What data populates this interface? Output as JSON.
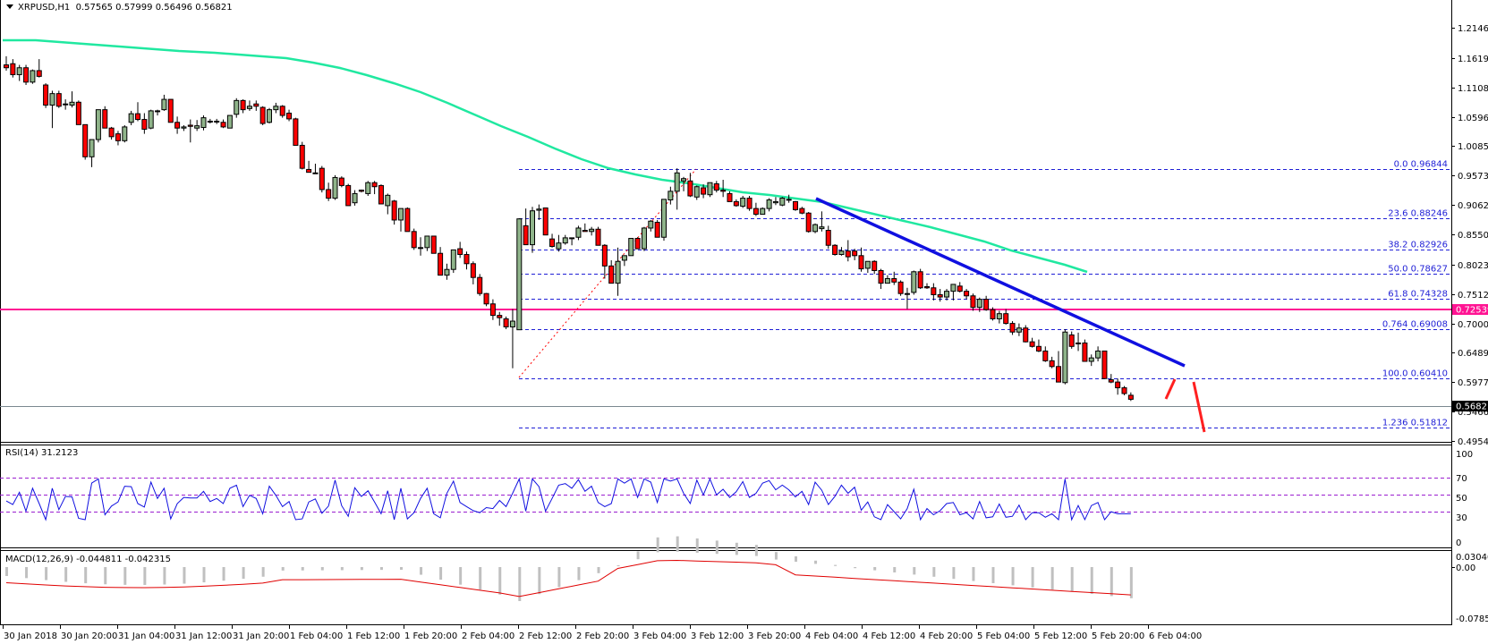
{
  "header": {
    "symbol": "XRPUSD,H1",
    "ohlc": "0.57565 0.57999 0.56496 0.56821"
  },
  "indicators": {
    "rsi_label": "RSI(14) 31.2123",
    "macd_label": "MACD(12,26,9) -0.044811 -0.042315"
  },
  "colors": {
    "bull": "#8fb48a",
    "bear": "#ff0000",
    "ma": "#20e8a0",
    "trend": "#1010e0",
    "support": "#ff1493",
    "fib": "#1f1fd6",
    "rsi": "#1010e0",
    "level": "#9b1fd0",
    "macd_hist": "#c0c0c0",
    "macd_signal": "#e00000"
  },
  "chart_data": {
    "type": "candlestick",
    "title": "XRPUSD,H1",
    "price_axis": {
      "ticks": [
        "1.21465",
        "1.16195",
        "1.11080",
        "1.05965",
        "1.00850",
        "0.95735",
        "0.90620",
        "0.85505",
        "0.80235",
        "0.75120",
        "0.70005",
        "0.64890",
        "0.59775",
        "0.54660",
        "0.49545"
      ],
      "range": [
        0.49545,
        1.21465
      ]
    },
    "current_price": "0.56821",
    "support_level": "0.72539",
    "time_axis": [
      "30 Jan 2018",
      "30 Jan 20:00",
      "31 Jan 04:00",
      "31 Jan 12:00",
      "31 Jan 20:00",
      "1 Feb 04:00",
      "1 Feb 12:00",
      "1 Feb 20:00",
      "2 Feb 04:00",
      "2 Feb 12:00",
      "2 Feb 20:00",
      "3 Feb 04:00",
      "3 Feb 12:00",
      "3 Feb 20:00",
      "4 Feb 04:00",
      "4 Feb 12:00",
      "4 Feb 20:00",
      "5 Feb 04:00",
      "5 Feb 12:00",
      "5 Feb 20:00",
      "6 Feb 04:00"
    ],
    "fibonacci": [
      {
        "label": "0.0  0.96844",
        "price": 0.96844
      },
      {
        "label": "23.6  0.88246",
        "price": 0.88246
      },
      {
        "label": "38.2  0.82926",
        "price": 0.82926
      },
      {
        "label": "50.0  0.78627",
        "price": 0.78627
      },
      {
        "label": "61.8  0.74328",
        "price": 0.74328
      },
      {
        "label": "0.764  0.69008",
        "price": 0.69008
      },
      {
        "label": "100.0  0.60410",
        "price": 0.6041
      },
      {
        "label": "1.236  0.51812",
        "price": 0.51812
      }
    ],
    "rsi": {
      "label": "RSI(14)",
      "value": 31.2123,
      "levels": [
        70,
        50,
        30
      ],
      "axis": [
        "100",
        "70",
        "50",
        "30",
        "0"
      ]
    },
    "macd": {
      "label": "MACD(12,26,9)",
      "main": -0.044811,
      "signal": -0.042315,
      "axis": [
        "0.030406",
        "0.00",
        "-0.078542"
      ]
    },
    "candles": [
      [
        1.15,
        1.165,
        1.14,
        1.145
      ],
      [
        1.152,
        1.16,
        1.128,
        1.133
      ],
      [
        1.133,
        1.15,
        1.122,
        1.145
      ],
      [
        1.145,
        1.15,
        1.115,
        1.12
      ],
      [
        1.12,
        1.142,
        1.117,
        1.14
      ],
      [
        1.14,
        1.16,
        1.128,
        1.13
      ],
      [
        1.115,
        1.118,
        1.075,
        1.08
      ],
      [
        1.08,
        1.105,
        1.04,
        1.1
      ],
      [
        1.1,
        1.105,
        1.075,
        1.078
      ],
      [
        1.082,
        1.09,
        1.072,
        1.082
      ],
      [
        1.08,
        1.104,
        1.076,
        1.085
      ],
      [
        1.085,
        1.088,
        1.046,
        1.046
      ],
      [
        1.046,
        1.046,
        0.985,
        0.99
      ],
      [
        0.99,
        1.02,
        0.972,
        1.02
      ],
      [
        1.02,
        1.072,
        1.015,
        1.072
      ],
      [
        1.072,
        1.078,
        1.04,
        1.04
      ],
      [
        1.04,
        1.042,
        1.02,
        1.025
      ],
      [
        1.03,
        1.035,
        1.01,
        1.018
      ],
      [
        1.018,
        1.045,
        1.015,
        1.042
      ],
      [
        1.05,
        1.07,
        1.045,
        1.065
      ],
      [
        1.065,
        1.085,
        1.052,
        1.055
      ],
      [
        1.055,
        1.066,
        1.03,
        1.038
      ],
      [
        1.04,
        1.072,
        1.038,
        1.07
      ],
      [
        1.07,
        1.072,
        1.062,
        1.07
      ],
      [
        1.072,
        1.098,
        1.07,
        1.09
      ],
      [
        1.09,
        1.09,
        1.05,
        1.05
      ],
      [
        1.05,
        1.06,
        1.03,
        1.04
      ],
      [
        1.04,
        1.045,
        1.035,
        1.042
      ],
      [
        1.045,
        1.055,
        1.015,
        1.043
      ],
      [
        1.04,
        1.054,
        1.035,
        1.044
      ],
      [
        1.041,
        1.062,
        1.036,
        1.058
      ],
      [
        1.052,
        1.056,
        1.048,
        1.052
      ],
      [
        1.052,
        1.056,
        1.047,
        1.052
      ],
      [
        1.05,
        1.055,
        1.04,
        1.042
      ],
      [
        1.04,
        1.062,
        1.04,
        1.062
      ],
      [
        1.064,
        1.092,
        1.058,
        1.088
      ],
      [
        1.088,
        1.09,
        1.066,
        1.072
      ],
      [
        1.074,
        1.088,
        1.07,
        1.078
      ],
      [
        1.082,
        1.088,
        1.07,
        1.078
      ],
      [
        1.076,
        1.078,
        1.045,
        1.048
      ],
      [
        1.05,
        1.075,
        1.048,
        1.072
      ],
      [
        1.072,
        1.084,
        1.066,
        1.078
      ],
      [
        1.078,
        1.08,
        1.058,
        1.062
      ],
      [
        1.066,
        1.072,
        1.052,
        1.056
      ],
      [
        1.056,
        1.058,
        1.01,
        1.01
      ],
      [
        1.01,
        1.016,
        0.968,
        0.97
      ],
      [
        0.968,
        0.983,
        0.963,
        0.963
      ],
      [
        0.962,
        0.978,
        0.961,
        0.962
      ],
      [
        0.97,
        0.974,
        0.928,
        0.933
      ],
      [
        0.933,
        0.945,
        0.913,
        0.918
      ],
      [
        0.918,
        0.958,
        0.915,
        0.954
      ],
      [
        0.953,
        0.956,
        0.937,
        0.94
      ],
      [
        0.94,
        0.943,
        0.905,
        0.905
      ],
      [
        0.91,
        0.932,
        0.905,
        0.926
      ],
      [
        0.932,
        0.933,
        0.928,
        0.93
      ],
      [
        0.926,
        0.948,
        0.922,
        0.945
      ],
      [
        0.945,
        0.948,
        0.925,
        0.938
      ],
      [
        0.94,
        0.942,
        0.908,
        0.908
      ],
      [
        0.905,
        0.926,
        0.89,
        0.923
      ],
      [
        0.913,
        0.915,
        0.872,
        0.88
      ],
      [
        0.88,
        0.9,
        0.86,
        0.9
      ],
      [
        0.9,
        0.902,
        0.86,
        0.86
      ],
      [
        0.86,
        0.865,
        0.828,
        0.832
      ],
      [
        0.832,
        0.85,
        0.818,
        0.832
      ],
      [
        0.832,
        0.852,
        0.826,
        0.852
      ],
      [
        0.852,
        0.852,
        0.822,
        0.822
      ],
      [
        0.822,
        0.833,
        0.784,
        0.784
      ],
      [
        0.784,
        0.804,
        0.776,
        0.794
      ],
      [
        0.794,
        0.828,
        0.788,
        0.828
      ],
      [
        0.83,
        0.842,
        0.814,
        0.82
      ],
      [
        0.82,
        0.825,
        0.794,
        0.804
      ],
      [
        0.804,
        0.808,
        0.768,
        0.78
      ],
      [
        0.78,
        0.786,
        0.748,
        0.752
      ],
      [
        0.752,
        0.753,
        0.73,
        0.734
      ],
      [
        0.734,
        0.742,
        0.706,
        0.714
      ],
      [
        0.714,
        0.72,
        0.696,
        0.71
      ],
      [
        0.708,
        0.712,
        0.69,
        0.694
      ],
      [
        0.694,
        0.725,
        0.622,
        0.704
      ],
      [
        0.689,
        0.883,
        0.689,
        0.882
      ],
      [
        0.87,
        0.9,
        0.84,
        0.837
      ],
      [
        0.837,
        0.903,
        0.823,
        0.896
      ],
      [
        0.897,
        0.907,
        0.88,
        0.899
      ],
      [
        0.901,
        0.901,
        0.856,
        0.854
      ],
      [
        0.847,
        0.856,
        0.832,
        0.834
      ],
      [
        0.83,
        0.854,
        0.825,
        0.84
      ],
      [
        0.84,
        0.854,
        0.837,
        0.849
      ],
      [
        0.849,
        0.849,
        0.836,
        0.849
      ],
      [
        0.85,
        0.87,
        0.845,
        0.866
      ],
      [
        0.862,
        0.874,
        0.86,
        0.86
      ],
      [
        0.86,
        0.868,
        0.853,
        0.864
      ],
      [
        0.864,
        0.868,
        0.836,
        0.836
      ],
      [
        0.836,
        0.838,
        0.778,
        0.8
      ],
      [
        0.8,
        0.81,
        0.77,
        0.77
      ],
      [
        0.77,
        0.832,
        0.748,
        0.808
      ],
      [
        0.81,
        0.818,
        0.8,
        0.818
      ],
      [
        0.818,
        0.84,
        0.82,
        0.848
      ],
      [
        0.848,
        0.85,
        0.83,
        0.83
      ],
      [
        0.83,
        0.868,
        0.826,
        0.866
      ],
      [
        0.866,
        0.88,
        0.86,
        0.878
      ],
      [
        0.876,
        0.88,
        0.85,
        0.85
      ],
      [
        0.85,
        0.9,
        0.844,
        0.916
      ],
      [
        0.915,
        0.938,
        0.907,
        0.93
      ],
      [
        0.93,
        0.97,
        0.898,
        0.962
      ],
      [
        0.948,
        0.955,
        0.93,
        0.952
      ],
      [
        0.948,
        0.962,
        0.92,
        0.922
      ],
      [
        0.92,
        0.94,
        0.915,
        0.938
      ],
      [
        0.936,
        0.942,
        0.918,
        0.925
      ],
      [
        0.924,
        0.945,
        0.92,
        0.945
      ],
      [
        0.943,
        0.948,
        0.928,
        0.932
      ],
      [
        0.932,
        0.95,
        0.92,
        0.93
      ],
      [
        0.926,
        0.93,
        0.912,
        0.912
      ],
      [
        0.912,
        0.916,
        0.903,
        0.905
      ],
      [
        0.904,
        0.922,
        0.901,
        0.918
      ],
      [
        0.918,
        0.922,
        0.896,
        0.9
      ],
      [
        0.9,
        0.91,
        0.887,
        0.89
      ],
      [
        0.89,
        0.902,
        0.89,
        0.9
      ],
      [
        0.9,
        0.918,
        0.895,
        0.915
      ],
      [
        0.91,
        0.92,
        0.906,
        0.912
      ],
      [
        0.906,
        0.92,
        0.904,
        0.918
      ],
      [
        0.916,
        0.924,
        0.91,
        0.915
      ],
      [
        0.912,
        0.913,
        0.896,
        0.898
      ],
      [
        0.9,
        0.903,
        0.89,
        0.892
      ],
      [
        0.892,
        0.894,
        0.858,
        0.86
      ],
      [
        0.86,
        0.874,
        0.857,
        0.872
      ],
      [
        0.865,
        0.895,
        0.86,
        0.868
      ],
      [
        0.862,
        0.87,
        0.83,
        0.836
      ],
      [
        0.836,
        0.838,
        0.818,
        0.82
      ],
      [
        0.82,
        0.833,
        0.818,
        0.826
      ],
      [
        0.826,
        0.845,
        0.808,
        0.816
      ],
      [
        0.826,
        0.83,
        0.81,
        0.818
      ],
      [
        0.818,
        0.832,
        0.79,
        0.795
      ],
      [
        0.796,
        0.808,
        0.788,
        0.808
      ],
      [
        0.808,
        0.81,
        0.786,
        0.792
      ],
      [
        0.792,
        0.795,
        0.76,
        0.77
      ],
      [
        0.77,
        0.784,
        0.772,
        0.778
      ],
      [
        0.778,
        0.79,
        0.767,
        0.772
      ],
      [
        0.772,
        0.775,
        0.748,
        0.752
      ],
      [
        0.752,
        0.762,
        0.725,
        0.752
      ],
      [
        0.754,
        0.792,
        0.75,
        0.79
      ],
      [
        0.79,
        0.795,
        0.76,
        0.762
      ],
      [
        0.764,
        0.77,
        0.76,
        0.762
      ],
      [
        0.762,
        0.77,
        0.74,
        0.75
      ],
      [
        0.75,
        0.76,
        0.738,
        0.746
      ],
      [
        0.746,
        0.76,
        0.74,
        0.756
      ],
      [
        0.756,
        0.768,
        0.74,
        0.768
      ],
      [
        0.765,
        0.772,
        0.754,
        0.756
      ],
      [
        0.756,
        0.76,
        0.742,
        0.748
      ],
      [
        0.748,
        0.752,
        0.722,
        0.728
      ],
      [
        0.728,
        0.745,
        0.72,
        0.742
      ],
      [
        0.742,
        0.748,
        0.722,
        0.724
      ],
      [
        0.724,
        0.728,
        0.705,
        0.708
      ],
      [
        0.708,
        0.722,
        0.7,
        0.717
      ],
      [
        0.717,
        0.725,
        0.698,
        0.7
      ],
      [
        0.7,
        0.704,
        0.68,
        0.685
      ],
      [
        0.685,
        0.7,
        0.678,
        0.692
      ],
      [
        0.692,
        0.697,
        0.667,
        0.668
      ],
      [
        0.668,
        0.675,
        0.658,
        0.66
      ],
      [
        0.66,
        0.672,
        0.65,
        0.652
      ],
      [
        0.652,
        0.66,
        0.633,
        0.635
      ],
      [
        0.635,
        0.642,
        0.622,
        0.625
      ],
      [
        0.625,
        0.652,
        0.613,
        0.598
      ],
      [
        0.597,
        0.69,
        0.594,
        0.685
      ],
      [
        0.68,
        0.686,
        0.656,
        0.66
      ],
      [
        0.666,
        0.684,
        0.652,
        0.666
      ],
      [
        0.666,
        0.672,
        0.634,
        0.634
      ],
      [
        0.634,
        0.646,
        0.626,
        0.64
      ],
      [
        0.64,
        0.66,
        0.634,
        0.652
      ],
      [
        0.652,
        0.652,
        0.604,
        0.604
      ],
      [
        0.602,
        0.612,
        0.596,
        0.598
      ],
      [
        0.598,
        0.604,
        0.576,
        0.588
      ],
      [
        0.588,
        0.591,
        0.575,
        0.578
      ],
      [
        0.575,
        0.58,
        0.565,
        0.568
      ]
    ]
  }
}
